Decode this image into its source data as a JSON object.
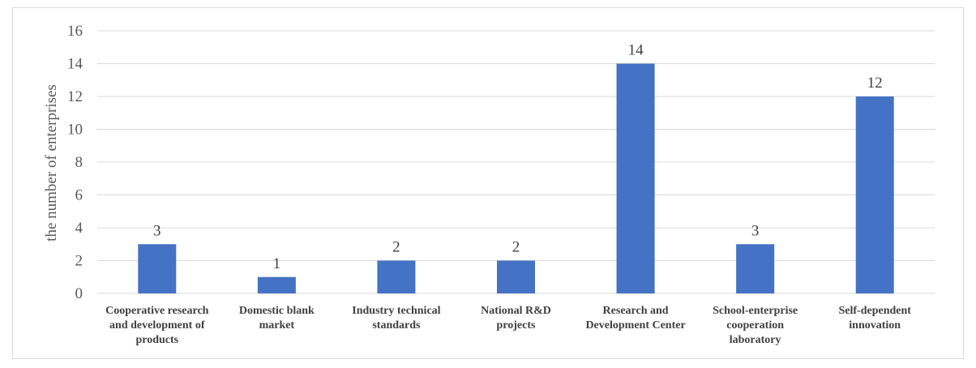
{
  "chart_data": {
    "type": "bar",
    "title": "",
    "xlabel": "",
    "ylabel": "the number of enterprises",
    "ylim": [
      0,
      16
    ],
    "yticks": [
      0,
      2,
      4,
      6,
      8,
      10,
      12,
      14,
      16
    ],
    "grid": true,
    "legend": "none",
    "colors": {
      "bar": "#4472C4",
      "grid": "#d9d9d9",
      "axis": "#d9d9d9"
    },
    "categories": [
      [
        "Cooperative research",
        "and development of",
        "products"
      ],
      [
        "Domestic blank",
        "market"
      ],
      [
        "Industry technical",
        "standards"
      ],
      [
        "National R&D",
        "projects"
      ],
      [
        "Research and",
        "Development Center"
      ],
      [
        "School-enterprise",
        "cooperation",
        "laboratory"
      ],
      [
        "Self-dependent",
        "innovation"
      ]
    ],
    "values": [
      3,
      1,
      2,
      2,
      14,
      3,
      12
    ],
    "data_labels": [
      "3",
      "1",
      "2",
      "2",
      "14",
      "3",
      "12"
    ]
  }
}
